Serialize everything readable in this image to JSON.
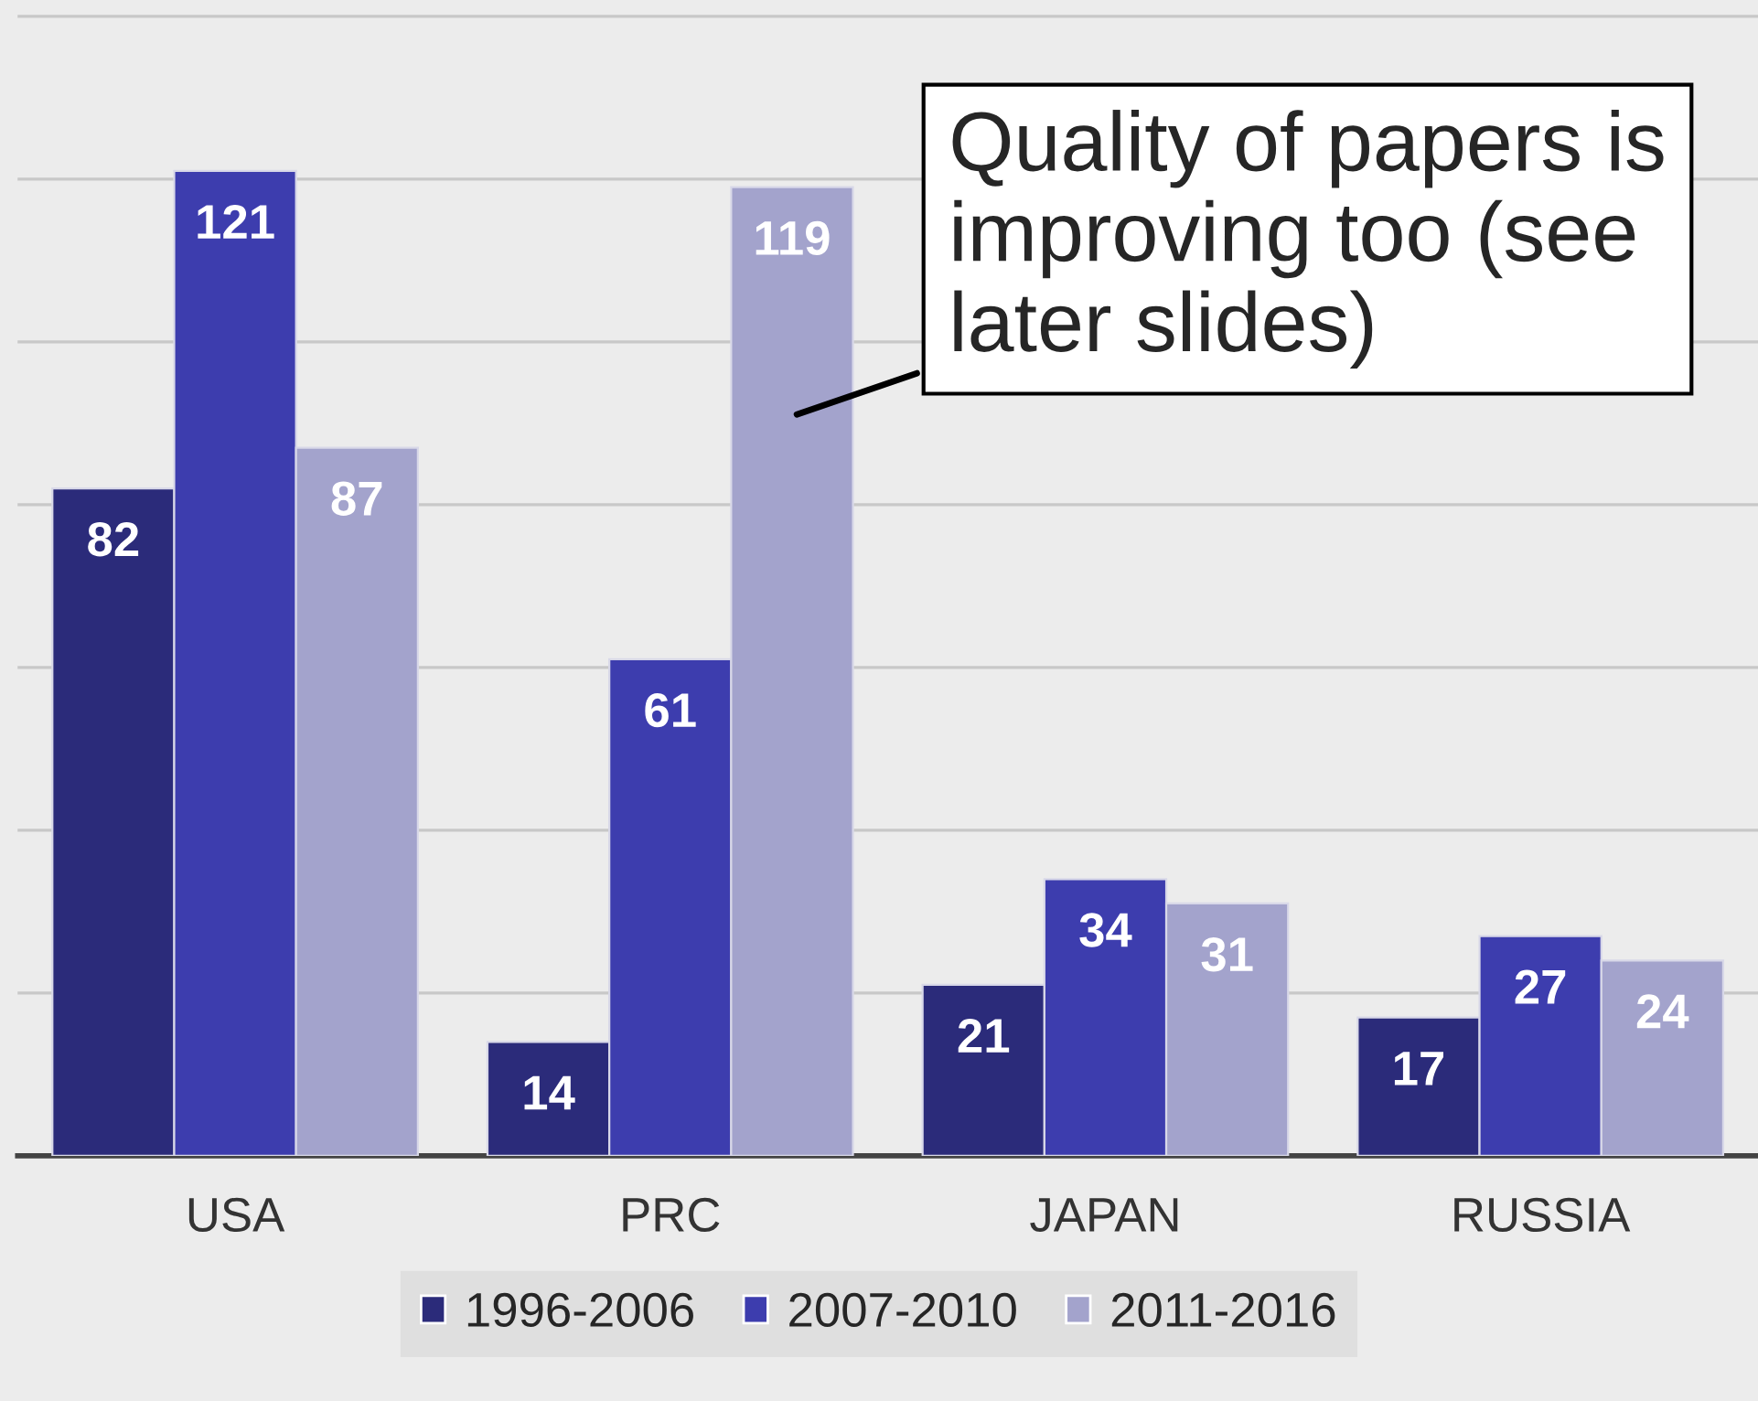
{
  "chart_data": {
    "type": "bar",
    "categories": [
      "USA",
      "PRC",
      "JAPAN",
      "RUSSIA"
    ],
    "series": [
      {
        "name": "1996-2006",
        "color": "#2b2b7a",
        "values": [
          82,
          14,
          21,
          17
        ]
      },
      {
        "name": "2007-2010",
        "color": "#3d3dae",
        "values": [
          121,
          61,
          34,
          27
        ]
      },
      {
        "name": "2011-2016",
        "color": "#a3a3cc",
        "values": [
          87,
          119,
          31,
          24
        ]
      }
    ],
    "data_labels": true,
    "ylim": [
      0,
      142
    ],
    "yticks": [
      {
        "value": 0,
        "label": null
      },
      {
        "value": 20,
        "label": null
      },
      {
        "value": 40,
        "label": null
      },
      {
        "value": 60,
        "label": null
      },
      {
        "value": 80,
        "label": null
      },
      {
        "value": 100,
        "label": null
      },
      {
        "value": 120,
        "label": null
      },
      {
        "value": 140,
        "label": null
      }
    ],
    "tick_labels": "x",
    "grid": "y",
    "legend": "bottom",
    "annotations": [
      "Quality of papers is improving too (see later slides)"
    ]
  }
}
